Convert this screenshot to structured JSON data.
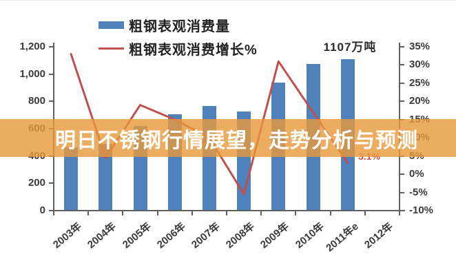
{
  "banner": {
    "text": "明日不锈钢行情展望，走势分析与预测",
    "bg_color": "rgba(233,152,58,0.8)"
  },
  "legend": [
    {
      "label": "粗钢表观消费量",
      "type": "bar",
      "color": "#4F81BD"
    },
    {
      "label": "粗钢表观消费增长%",
      "type": "line",
      "color": "#C0504D"
    }
  ],
  "annotations": {
    "bar_label": "1107万吨",
    "line_label": "3.1%",
    "line_label_color": "#C0504D"
  },
  "chart_data": {
    "type": "bar",
    "title": "",
    "categories": [
      "2003年",
      "2004年",
      "2005年",
      "2006年",
      "2007年",
      "2008年",
      "2009年",
      "2010年",
      "2011年e",
      "2012年"
    ],
    "series": [
      {
        "name": "粗钢表观消费量",
        "type": "bar",
        "axis": "left",
        "color": "#4F81BD",
        "values": [
          465,
          490,
          620,
          705,
          765,
          728,
          940,
          1073,
          1107,
          null
        ]
      },
      {
        "name": "粗钢表观消费增长%",
        "type": "line",
        "axis": "right",
        "color": "#C0504D",
        "values": [
          33,
          4.5,
          19,
          15,
          10,
          -5.5,
          31,
          17,
          3.1,
          null
        ]
      }
    ],
    "left_axis": {
      "tick_labels": [
        "1,200",
        "1,000",
        "800",
        "600",
        "400",
        "200",
        "0"
      ],
      "min": 0,
      "max": 1200,
      "step": 200
    },
    "right_axis": {
      "tick_labels": [
        "35%",
        "30%",
        "25%",
        "20%",
        "15%",
        "10%",
        "5%",
        "0%",
        "-5%",
        "-10%"
      ],
      "min": -10,
      "max": 35,
      "step": 5
    },
    "grid": false,
    "legend_position": "top-left"
  }
}
